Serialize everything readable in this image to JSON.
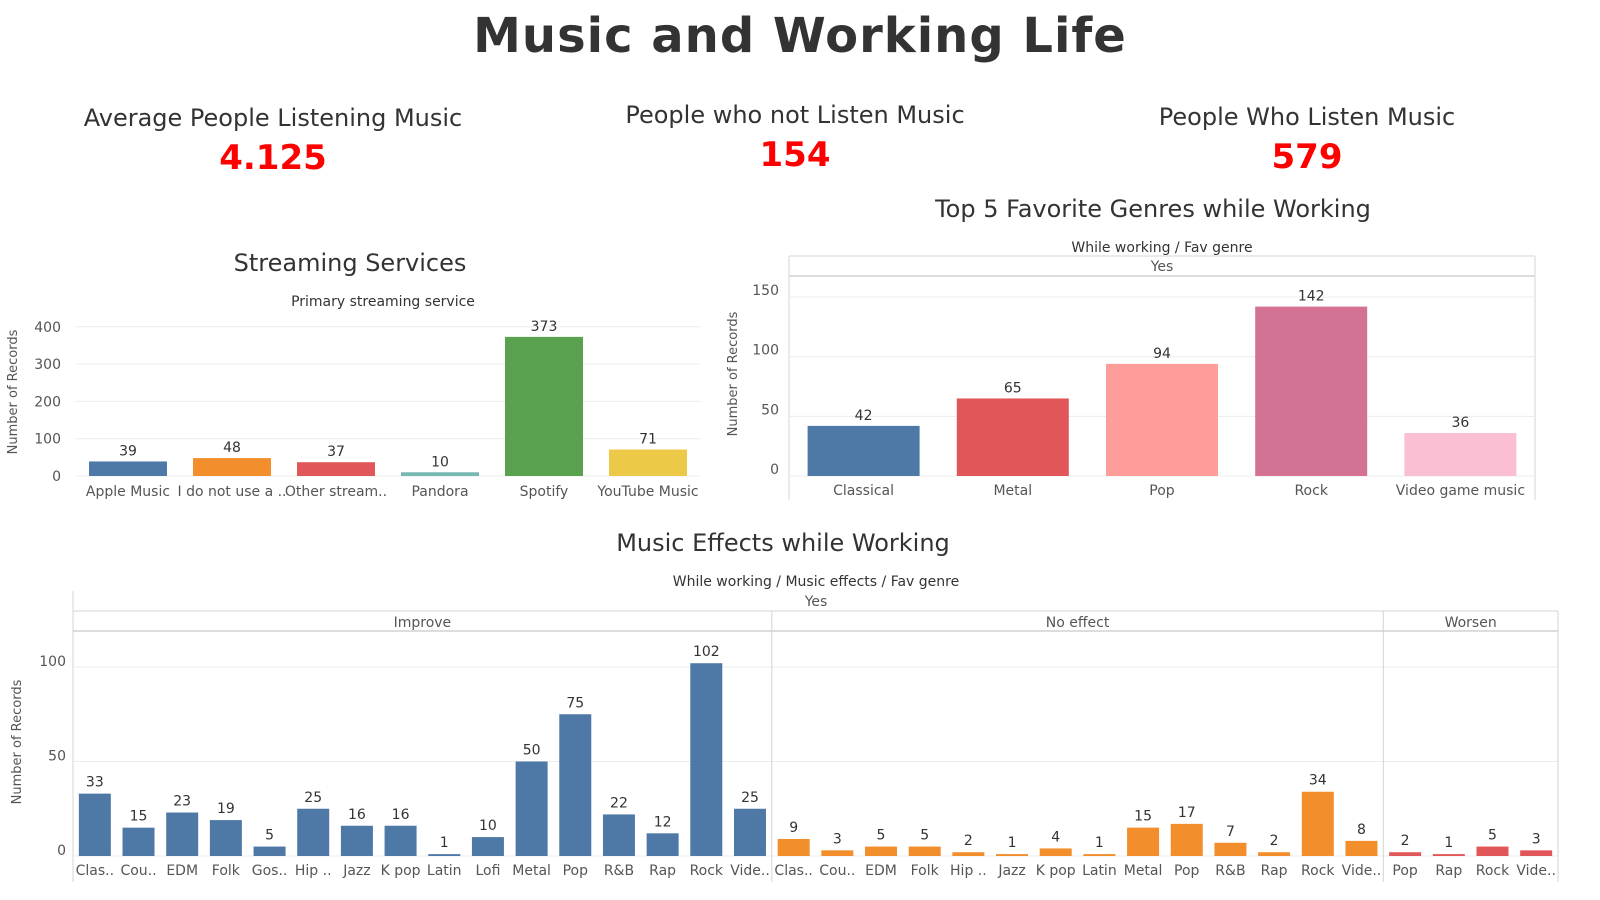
{
  "title": "Music and Working Life",
  "kpis": [
    {
      "label": "Average People Listening Music",
      "value": "4.125"
    },
    {
      "label": "People who not Listen Music",
      "value": "154"
    },
    {
      "label": "People Who Listen Music",
      "value": "579"
    }
  ],
  "chart_titles": {
    "streaming": "Streaming Services",
    "genres": "Top 5 Favorite Genres while Working",
    "effects": "Music Effects while Working"
  },
  "colors": {
    "kpi_value": "#ff0000",
    "blue": "#4e79a7",
    "orange": "#f28e2b",
    "red": "#e15759",
    "teal": "#76b7b2",
    "green": "#59a14f",
    "yellow": "#edc948",
    "pink": "#ff9d9a",
    "mauve": "#d37295",
    "light_pink": "#fabfd2"
  },
  "chart_data": [
    {
      "type": "bar",
      "title": "Streaming Services",
      "header": "Primary streaming service",
      "ylabel": "Number of Records",
      "ylim": [
        0,
        450
      ],
      "yticks": [
        0,
        100,
        200,
        300,
        400
      ],
      "categories": [
        "Apple Music",
        "I do not use a ..",
        "Other stream..",
        "Pandora",
        "Spotify",
        "YouTube Music"
      ],
      "values": [
        39,
        48,
        37,
        10,
        373,
        71
      ],
      "colors": [
        "#4e79a7",
        "#f28e2b",
        "#e15759",
        "#76b7b2",
        "#59a14f",
        "#edc948"
      ]
    },
    {
      "type": "bar",
      "title": "Top 5 Favorite Genres while Working",
      "header": [
        "While working",
        "Fav genre"
      ],
      "group_label": "Yes",
      "ylabel": "Number of Records",
      "ylim": [
        0,
        175
      ],
      "yticks": [
        0,
        50,
        100,
        150
      ],
      "categories": [
        "Classical",
        "Metal",
        "Pop",
        "Rock",
        "Video game music"
      ],
      "values": [
        42,
        65,
        94,
        142,
        36
      ],
      "colors": [
        "#4e79a7",
        "#e15759",
        "#ff9d9a",
        "#d37295",
        "#fabfd2"
      ]
    },
    {
      "type": "bar",
      "title": "Music Effects while Working",
      "header": [
        "While working",
        "Music effects",
        "Fav genre"
      ],
      "group_label": "Yes",
      "ylabel": "Number of Records",
      "ylim": [
        0,
        115
      ],
      "yticks": [
        0,
        50,
        100
      ],
      "panels": [
        {
          "name": "Improve",
          "color": "#4e79a7",
          "categories": [
            "Clas..",
            "Cou..",
            "EDM",
            "Folk",
            "Gos..",
            "Hip ..",
            "Jazz",
            "K pop",
            "Latin",
            "Lofi",
            "Metal",
            "Pop",
            "R&B",
            "Rap",
            "Rock",
            "Vide.."
          ],
          "values": [
            33,
            15,
            23,
            19,
            5,
            25,
            16,
            16,
            1,
            10,
            50,
            75,
            22,
            12,
            102,
            25
          ]
        },
        {
          "name": "No effect",
          "color": "#f28e2b",
          "categories": [
            "Clas..",
            "Cou..",
            "EDM",
            "Folk",
            "Hip ..",
            "Jazz",
            "K pop",
            "Latin",
            "Metal",
            "Pop",
            "R&B",
            "Rap",
            "Rock",
            "Vide.."
          ],
          "values": [
            9,
            3,
            5,
            5,
            2,
            1,
            4,
            1,
            15,
            17,
            7,
            2,
            34,
            8
          ]
        },
        {
          "name": "Worsen",
          "color": "#e15759",
          "categories": [
            "Pop",
            "Rap",
            "Rock",
            "Vide.."
          ],
          "values": [
            2,
            1,
            5,
            3
          ]
        }
      ]
    }
  ]
}
